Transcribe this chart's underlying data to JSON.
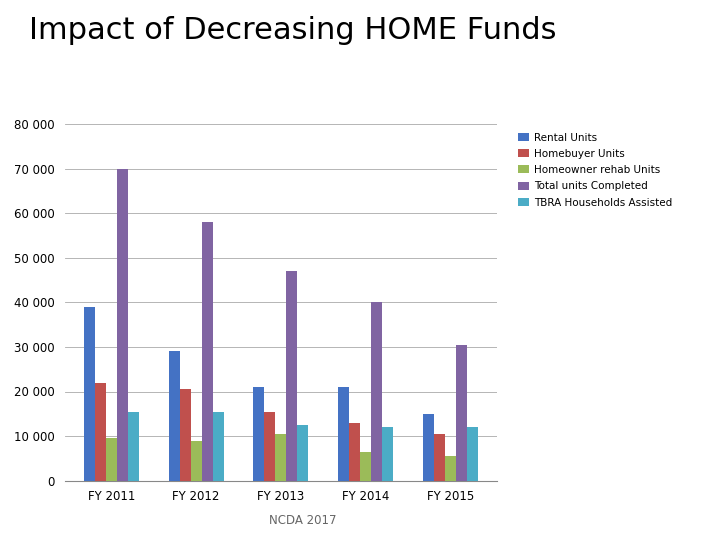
{
  "title": "Impact of Decreasing HOME Funds",
  "title_fontsize": 22,
  "categories": [
    "FY 2011",
    "FY 2012",
    "FY 2013",
    "FY 2014",
    "FY 2015"
  ],
  "series": [
    {
      "label": "Rental Units",
      "color": "#4472C4",
      "values": [
        39000,
        29000,
        21000,
        21000,
        15000
      ]
    },
    {
      "label": "Homebuyer Units",
      "color": "#C0504D",
      "values": [
        22000,
        20500,
        15500,
        13000,
        10500
      ]
    },
    {
      "label": "Homeowner rehab Units",
      "color": "#9BBB59",
      "values": [
        9500,
        9000,
        10500,
        6500,
        5500
      ]
    },
    {
      "label": "Total units Completed",
      "color": "#8064A2",
      "values": [
        70000,
        58000,
        47000,
        40000,
        30500
      ]
    },
    {
      "label": "TBRA Households Assisted",
      "color": "#4BACC6",
      "values": [
        15500,
        15500,
        12500,
        12000,
        12000
      ]
    }
  ],
  "ylim": [
    0,
    80000
  ],
  "yticks": [
    0,
    10000,
    20000,
    30000,
    40000,
    50000,
    60000,
    70000,
    80000
  ],
  "ytick_labels": [
    "0",
    "10 000",
    "20 000",
    "30 000",
    "40 000",
    "50 000",
    "60 000",
    "70 000",
    "80 000"
  ],
  "footnote": "NCDA 2017",
  "background_color": "#ffffff",
  "grid_color": "#aaaaaa",
  "legend_fontsize": 7.5,
  "axis_fontsize": 8.5
}
